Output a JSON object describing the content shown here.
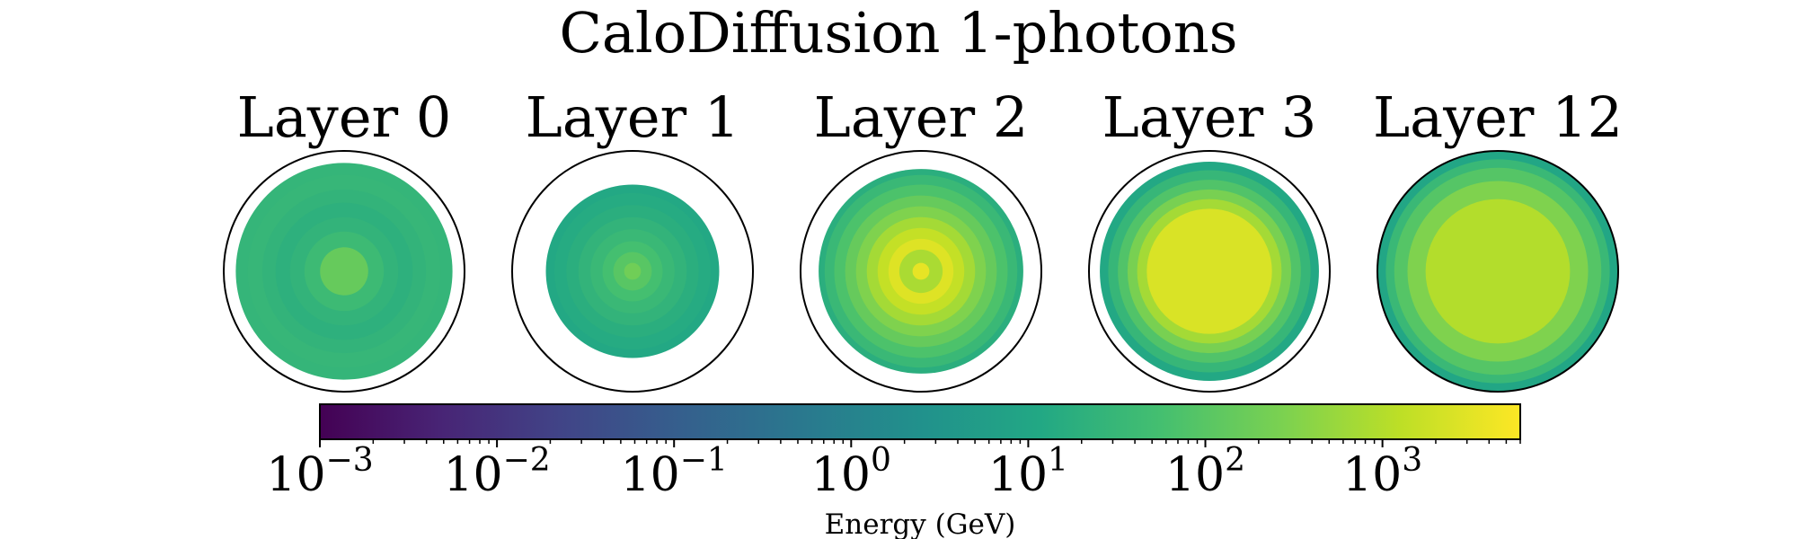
{
  "title": "CaloDiffusion 1-photons",
  "chart_data": {
    "type": "heatmap",
    "description_units": "Energy (GeV)",
    "colormap": "viridis",
    "scale": "log",
    "range": [
      0.001,
      6000
    ],
    "panels": [
      {
        "title": "Layer 0",
        "outer_ring_filled": false,
        "rings": [
          {
            "r": [
              0.0,
              0.2
            ],
            "value": 150
          },
          {
            "r": [
              0.2,
              0.33
            ],
            "value": 40
          },
          {
            "r": [
              0.33,
              0.45
            ],
            "value": 25
          },
          {
            "r": [
              0.45,
              0.57
            ],
            "value": 20
          },
          {
            "r": [
              0.57,
              0.68
            ],
            "value": 25
          },
          {
            "r": [
              0.68,
              0.8
            ],
            "value": 30
          },
          {
            "r": [
              0.8,
              0.9
            ],
            "value": 28
          }
        ]
      },
      {
        "title": "Layer 1",
        "outer_ring_filled": false,
        "rings": [
          {
            "r": [
              0.0,
              0.07
            ],
            "value": 200
          },
          {
            "r": [
              0.07,
              0.16
            ],
            "value": 100
          },
          {
            "r": [
              0.16,
              0.25
            ],
            "value": 55
          },
          {
            "r": [
              0.25,
              0.35
            ],
            "value": 35
          },
          {
            "r": [
              0.35,
              0.45
            ],
            "value": 25
          },
          {
            "r": [
              0.45,
              0.55
            ],
            "value": 18
          },
          {
            "r": [
              0.55,
              0.65
            ],
            "value": 14
          },
          {
            "r": [
              0.65,
              0.72
            ],
            "value": 12
          }
        ]
      },
      {
        "title": "Layer 2",
        "outer_ring_filled": false,
        "rings": [
          {
            "r": [
              0.0,
              0.07
            ],
            "value": 3500
          },
          {
            "r": [
              0.07,
              0.18
            ],
            "value": 800
          },
          {
            "r": [
              0.18,
              0.27
            ],
            "value": 2800
          },
          {
            "r": [
              0.27,
              0.36
            ],
            "value": 1500
          },
          {
            "r": [
              0.36,
              0.45
            ],
            "value": 700
          },
          {
            "r": [
              0.45,
              0.54
            ],
            "value": 300
          },
          {
            "r": [
              0.54,
              0.63
            ],
            "value": 150
          },
          {
            "r": [
              0.63,
              0.72
            ],
            "value": 70
          },
          {
            "r": [
              0.72,
              0.8
            ],
            "value": 35
          },
          {
            "r": [
              0.8,
              0.85
            ],
            "value": 18
          }
        ]
      },
      {
        "title": "Layer 3",
        "outer_ring_filled": false,
        "rings": [
          {
            "r": [
              0.0,
              0.52
            ],
            "value": 2500
          },
          {
            "r": [
              0.52,
              0.6
            ],
            "value": 700
          },
          {
            "r": [
              0.6,
              0.68
            ],
            "value": 250
          },
          {
            "r": [
              0.68,
              0.76
            ],
            "value": 80
          },
          {
            "r": [
              0.76,
              0.84
            ],
            "value": 30
          },
          {
            "r": [
              0.84,
              0.91
            ],
            "value": 12
          }
        ]
      },
      {
        "title": "Layer 12",
        "outer_ring_filled": true,
        "rings": [
          {
            "r": [
              0.0,
              0.6
            ],
            "value": 1000
          },
          {
            "r": [
              0.6,
              0.75
            ],
            "value": 300
          },
          {
            "r": [
              0.75,
              0.86
            ],
            "value": 90
          },
          {
            "r": [
              0.86,
              0.93
            ],
            "value": 35
          },
          {
            "r": [
              0.93,
              1.0
            ],
            "value": 10
          }
        ]
      }
    ],
    "colorbar": {
      "label": "Energy (GeV)",
      "ticks": [
        {
          "value": 0.001,
          "base": "10",
          "exp": "−3"
        },
        {
          "value": 0.01,
          "base": "10",
          "exp": "−2"
        },
        {
          "value": 0.1,
          "base": "10",
          "exp": "−1"
        },
        {
          "value": 1,
          "base": "10",
          "exp": "0"
        },
        {
          "value": 10,
          "base": "10",
          "exp": "1"
        },
        {
          "value": 100,
          "base": "10",
          "exp": "2"
        },
        {
          "value": 1000,
          "base": "10",
          "exp": "3"
        }
      ]
    }
  }
}
